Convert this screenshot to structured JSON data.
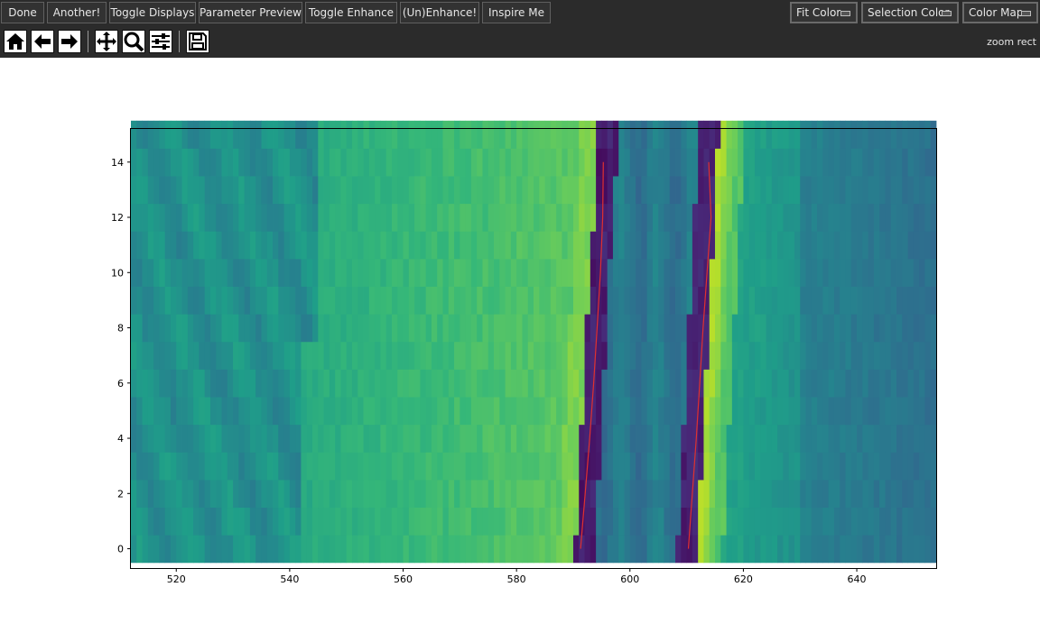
{
  "toolbar_buttons": [
    {
      "label": "Done"
    },
    {
      "label": "Another!"
    },
    {
      "label": "Toggle Displays"
    },
    {
      "label": "Parameter Preview"
    },
    {
      "label": "Toggle Enhance"
    },
    {
      "label": "(Un)Enhance!"
    },
    {
      "label": "Inspire Me"
    }
  ],
  "dropdowns": [
    {
      "label": "Fit Color"
    },
    {
      "label": "Selection Color"
    },
    {
      "label": "Color Map"
    }
  ],
  "nav_tools": [
    "home-icon",
    "back-icon",
    "forward-icon",
    "pan-icon",
    "zoom-icon",
    "configure-subplots-icon",
    "save-icon"
  ],
  "mode_text": "zoom rect",
  "chart_data": {
    "type": "heatmap",
    "colormap": "viridis",
    "xlim": [
      512,
      654
    ],
    "ylim": [
      -0.7,
      15.2
    ],
    "rows_y": [
      0,
      15
    ],
    "x_ticks": [
      520,
      540,
      560,
      580,
      600,
      620,
      640
    ],
    "y_ticks": [
      0,
      2,
      4,
      6,
      8,
      10,
      12,
      14
    ],
    "fit_lines": [
      {
        "color": "#e03030",
        "points": [
          [
            591.3,
            0
          ],
          [
            592.1,
            2
          ],
          [
            592.9,
            4
          ],
          [
            593.6,
            6
          ],
          [
            594.2,
            8
          ],
          [
            594.8,
            10
          ],
          [
            595.2,
            12
          ],
          [
            595.3,
            14
          ]
        ]
      },
      {
        "color": "#e03030",
        "points": [
          [
            610.3,
            0
          ],
          [
            611.0,
            2
          ],
          [
            611.7,
            4
          ],
          [
            612.3,
            6
          ],
          [
            612.9,
            8
          ],
          [
            613.6,
            10
          ],
          [
            614.3,
            12
          ],
          [
            613.9,
            14
          ]
        ]
      }
    ]
  }
}
